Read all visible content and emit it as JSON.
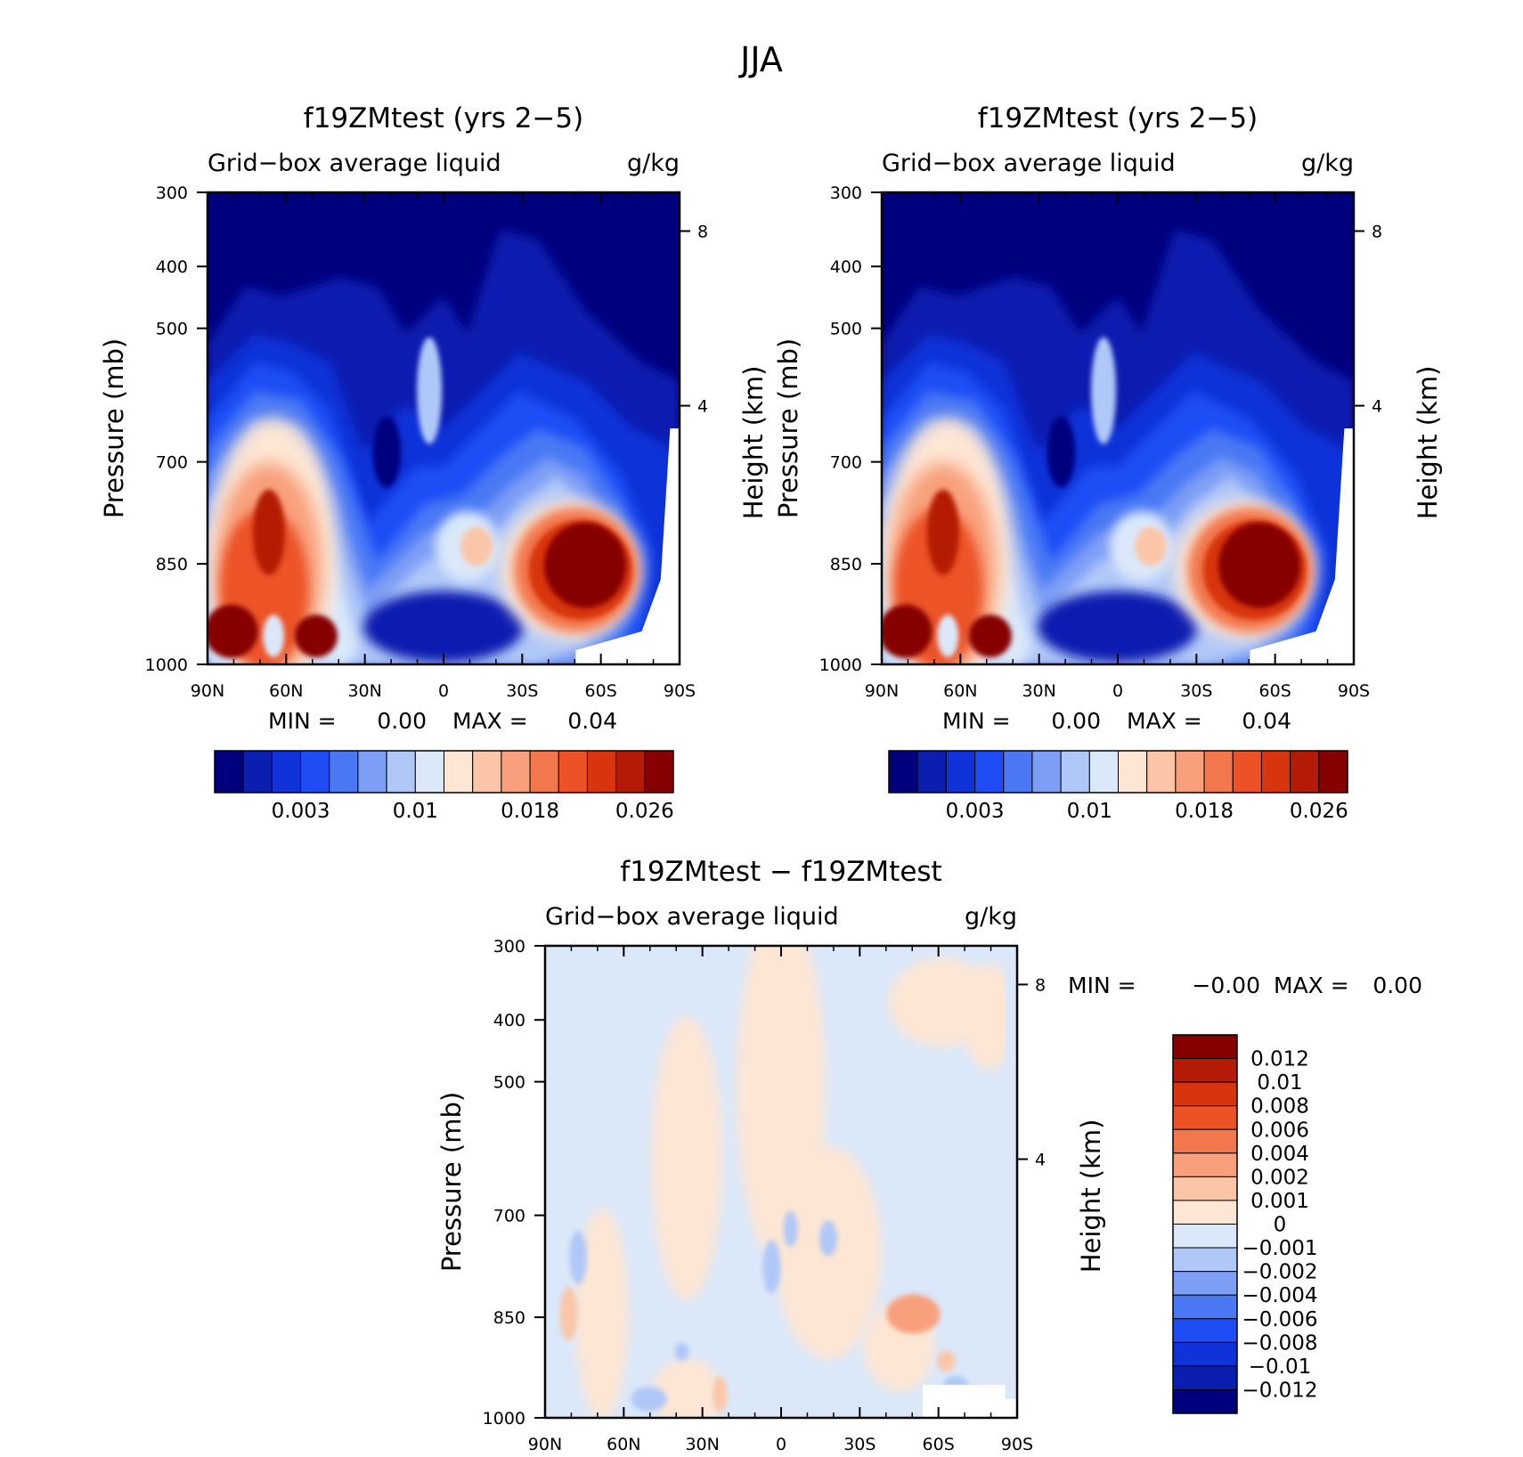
{
  "figure_title": "JJA",
  "chart_data": [
    {
      "type": "heatmap",
      "title": "f19ZMtest (yrs 2-5)",
      "subtitle_left": "Grid-box average liquid",
      "subtitle_right": "g/kg",
      "ylabel": "Pressure (mb)",
      "ylabel_right": "Height (km)",
      "x_ticks": [
        "90N",
        "60N",
        "30N",
        "0",
        "30S",
        "60S",
        "90S"
      ],
      "y_ticks": [
        "300",
        "400",
        "500",
        "700",
        "850",
        "1000"
      ],
      "y_right_ticks": [
        "8",
        "4"
      ],
      "stats": {
        "min_label": "MIN =",
        "min_value": "0.00",
        "max_label": "MAX =",
        "max_value": "0.04"
      },
      "colorbar": {
        "orientation": "horizontal",
        "colors": [
          "#00007f",
          "#0a1fb0",
          "#1033d9",
          "#1e4df5",
          "#4a78f5",
          "#7d9ef5",
          "#b0c8f8",
          "#dae8fa",
          "#fde6d4",
          "#fbc6a8",
          "#f8a07c",
          "#f3774c",
          "#ec5225",
          "#d8340d",
          "#b31b06",
          "#870000"
        ],
        "tick_labels": [
          "0.003",
          "0.01",
          "0.018",
          "0.026"
        ]
      }
    },
    {
      "type": "heatmap",
      "title": "f19ZMtest (yrs 2-5)",
      "subtitle_left": "Grid-box average liquid",
      "subtitle_right": "g/kg",
      "ylabel": "Pressure (mb)",
      "ylabel_right": "Height (km)",
      "x_ticks": [
        "90N",
        "60N",
        "30N",
        "0",
        "30S",
        "60S",
        "90S"
      ],
      "y_ticks": [
        "300",
        "400",
        "500",
        "700",
        "850",
        "1000"
      ],
      "y_right_ticks": [
        "8",
        "4"
      ],
      "stats": {
        "min_label": "MIN =",
        "min_value": "0.00",
        "max_label": "MAX =",
        "max_value": "0.04"
      },
      "colorbar": {
        "orientation": "horizontal",
        "colors": [
          "#00007f",
          "#0a1fb0",
          "#1033d9",
          "#1e4df5",
          "#4a78f5",
          "#7d9ef5",
          "#b0c8f8",
          "#dae8fa",
          "#fde6d4",
          "#fbc6a8",
          "#f8a07c",
          "#f3774c",
          "#ec5225",
          "#d8340d",
          "#b31b06",
          "#870000"
        ],
        "tick_labels": [
          "0.003",
          "0.01",
          "0.018",
          "0.026"
        ]
      }
    },
    {
      "type": "heatmap",
      "title": "f19ZMtest - f19ZMtest",
      "subtitle_left": "Grid-box average liquid",
      "subtitle_right": "g/kg",
      "ylabel": "Pressure (mb)",
      "ylabel_right": "Height (km)",
      "x_ticks": [
        "90N",
        "60N",
        "30N",
        "0",
        "30S",
        "60S",
        "90S"
      ],
      "y_ticks": [
        "300",
        "400",
        "500",
        "700",
        "850",
        "1000"
      ],
      "y_right_ticks": [
        "8",
        "4"
      ],
      "stats": {
        "min_label": "MIN =",
        "min_value": "-0.00",
        "max_label": "MAX =",
        "max_value": "0.00"
      },
      "colorbar": {
        "orientation": "vertical",
        "colors_top_to_bottom": [
          "#870000",
          "#b31b06",
          "#d8340d",
          "#ec5225",
          "#f3774c",
          "#f8a07c",
          "#fbc6a8",
          "#fde6d4",
          "#dae8fa",
          "#b0c8f8",
          "#7d9ef5",
          "#4a78f5",
          "#1e4df5",
          "#1033d9",
          "#0a1fb0",
          "#00007f"
        ],
        "tick_labels": [
          "0.012",
          "0.01",
          "0.008",
          "0.006",
          "0.004",
          "0.002",
          "0.001",
          "0",
          "-0.001",
          "-0.002",
          "-0.004",
          "-0.006",
          "-0.008",
          "-0.01",
          "-0.012"
        ]
      }
    }
  ]
}
